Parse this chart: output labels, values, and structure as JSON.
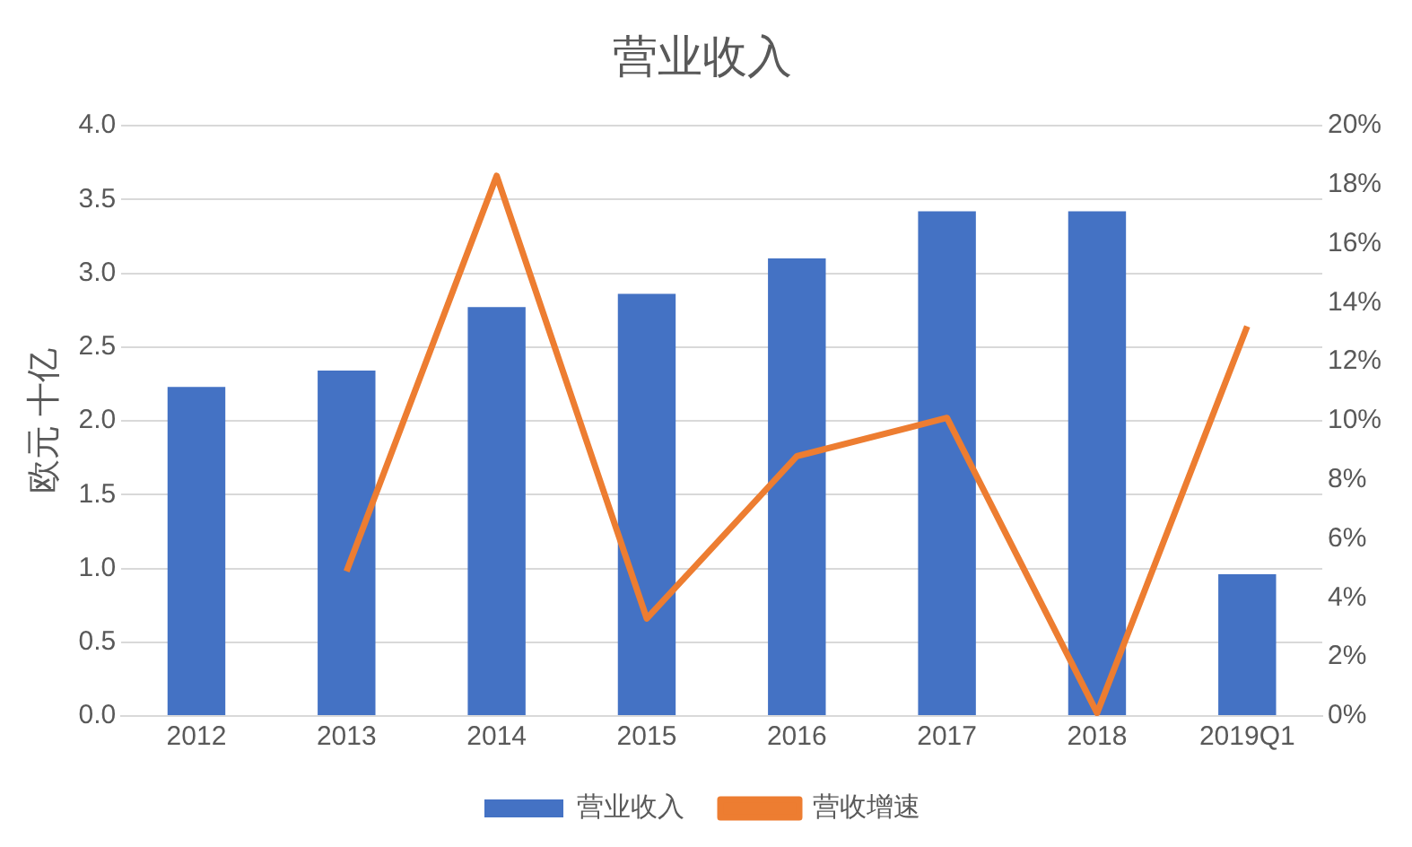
{
  "chart_data": {
    "type": "bar",
    "title": "营业收入",
    "ylabel": "欧元 十亿",
    "categories": [
      "2012",
      "2013",
      "2014",
      "2015",
      "2016",
      "2017",
      "2018",
      "2019Q1"
    ],
    "series": [
      {
        "name": "营业收入",
        "color": "#4472c4",
        "values": [
          2.23,
          2.34,
          2.77,
          2.86,
          3.1,
          3.42,
          3.42,
          0.96
        ]
      },
      {
        "name": "营收增速",
        "type": "line",
        "axis": "y2",
        "color": "#ed7d31",
        "values": [
          null,
          4.9,
          18.3,
          3.3,
          8.8,
          10.1,
          0.1,
          13.2
        ]
      }
    ],
    "ylim": [
      0,
      4
    ],
    "yticks": [
      {
        "value": 0,
        "label": "0.0"
      },
      {
        "value": 0.5,
        "label": "0.5"
      },
      {
        "value": 1,
        "label": "1.0"
      },
      {
        "value": 1.5,
        "label": "1.5"
      },
      {
        "value": 2,
        "label": "2.0"
      },
      {
        "value": 2.5,
        "label": "2.5"
      },
      {
        "value": 3,
        "label": "3.0"
      },
      {
        "value": 3.5,
        "label": "3.5"
      },
      {
        "value": 4,
        "label": "4.0"
      }
    ],
    "y2lim": [
      0,
      20
    ],
    "y2ticks": [
      {
        "value": 0,
        "label": "0%"
      },
      {
        "value": 2,
        "label": "2%"
      },
      {
        "value": 4,
        "label": "4%"
      },
      {
        "value": 6,
        "label": "6%"
      },
      {
        "value": 8,
        "label": "8%"
      },
      {
        "value": 10,
        "label": "10%"
      },
      {
        "value": 12,
        "label": "12%"
      },
      {
        "value": 14,
        "label": "14%"
      },
      {
        "value": 16,
        "label": "16%"
      },
      {
        "value": 18,
        "label": "18%"
      },
      {
        "value": 20,
        "label": "20%"
      }
    ],
    "grid": "y",
    "legend": "bottom",
    "marker": "none",
    "line_style": "solid"
  }
}
